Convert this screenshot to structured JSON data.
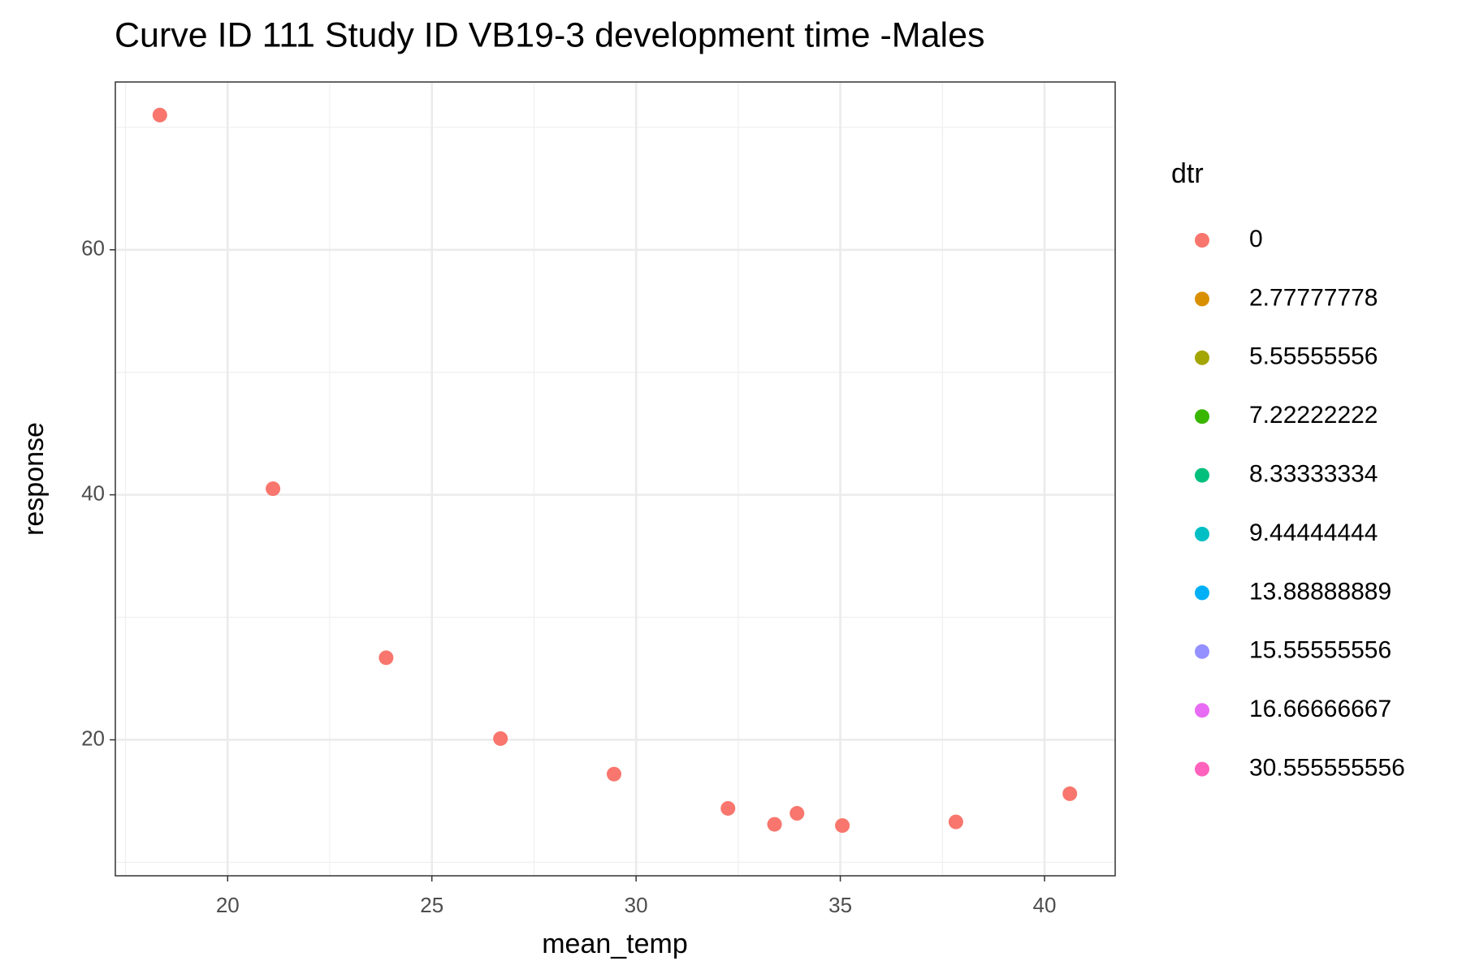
{
  "chart_data": {
    "type": "scatter",
    "title": "Curve ID 111 Study ID VB19-3 development time -Males",
    "x_label": "mean_temp",
    "y_label": "response",
    "legend_title": "dtr",
    "x": [
      18.34,
      21.11,
      23.88,
      26.68,
      29.46,
      32.25,
      33.39,
      33.94,
      35.05,
      37.83,
      40.62
    ],
    "series": [
      {
        "name": "0",
        "color": "#F8766D",
        "values": [
          71.0,
          40.5,
          26.7,
          20.1,
          17.2,
          14.4,
          13.1,
          14.0,
          13.0,
          13.3,
          15.6
        ]
      },
      {
        "name": "2.77777778",
        "color": "#D89000",
        "values": [
          null,
          null,
          null,
          null,
          null,
          null,
          null,
          null,
          null,
          null,
          null
        ]
      },
      {
        "name": "5.55555556",
        "color": "#A3A500",
        "values": [
          null,
          null,
          null,
          null,
          null,
          null,
          null,
          null,
          null,
          null,
          null
        ]
      },
      {
        "name": "7.22222222",
        "color": "#39B600",
        "values": [
          null,
          null,
          null,
          null,
          null,
          null,
          null,
          null,
          null,
          null,
          null
        ]
      },
      {
        "name": "8.33333334",
        "color": "#00BF7D",
        "values": [
          null,
          null,
          null,
          null,
          null,
          null,
          null,
          null,
          null,
          null,
          null
        ]
      },
      {
        "name": "9.44444444",
        "color": "#00BFC4",
        "values": [
          null,
          null,
          null,
          null,
          null,
          null,
          null,
          null,
          null,
          null,
          null
        ]
      },
      {
        "name": "13.88888889",
        "color": "#00B0F6",
        "values": [
          null,
          null,
          null,
          null,
          null,
          null,
          null,
          null,
          null,
          null,
          null
        ]
      },
      {
        "name": "15.55555556",
        "color": "#9590FF",
        "values": [
          null,
          null,
          null,
          null,
          null,
          null,
          null,
          null,
          null,
          null,
          null
        ]
      },
      {
        "name": "16.66666667",
        "color": "#E76BF3",
        "values": [
          null,
          null,
          null,
          null,
          null,
          null,
          null,
          null,
          null,
          null,
          null
        ]
      },
      {
        "name": "30.555555556",
        "color": "#FF62BC",
        "values": [
          null,
          null,
          null,
          null,
          null,
          null,
          null,
          null,
          null,
          null,
          null
        ]
      }
    ],
    "xlim": [
      17.25,
      41.73
    ],
    "ylim": [
      8.9,
      73.7
    ],
    "xticks": [
      20,
      25,
      30,
      35,
      40
    ],
    "yticks": [
      20,
      40,
      60
    ],
    "minor_xticks": [
      17.5,
      22.5,
      27.5,
      32.5,
      37.5
    ],
    "minor_yticks": [
      10,
      30,
      50,
      70
    ],
    "grid": true,
    "legend": "right"
  }
}
